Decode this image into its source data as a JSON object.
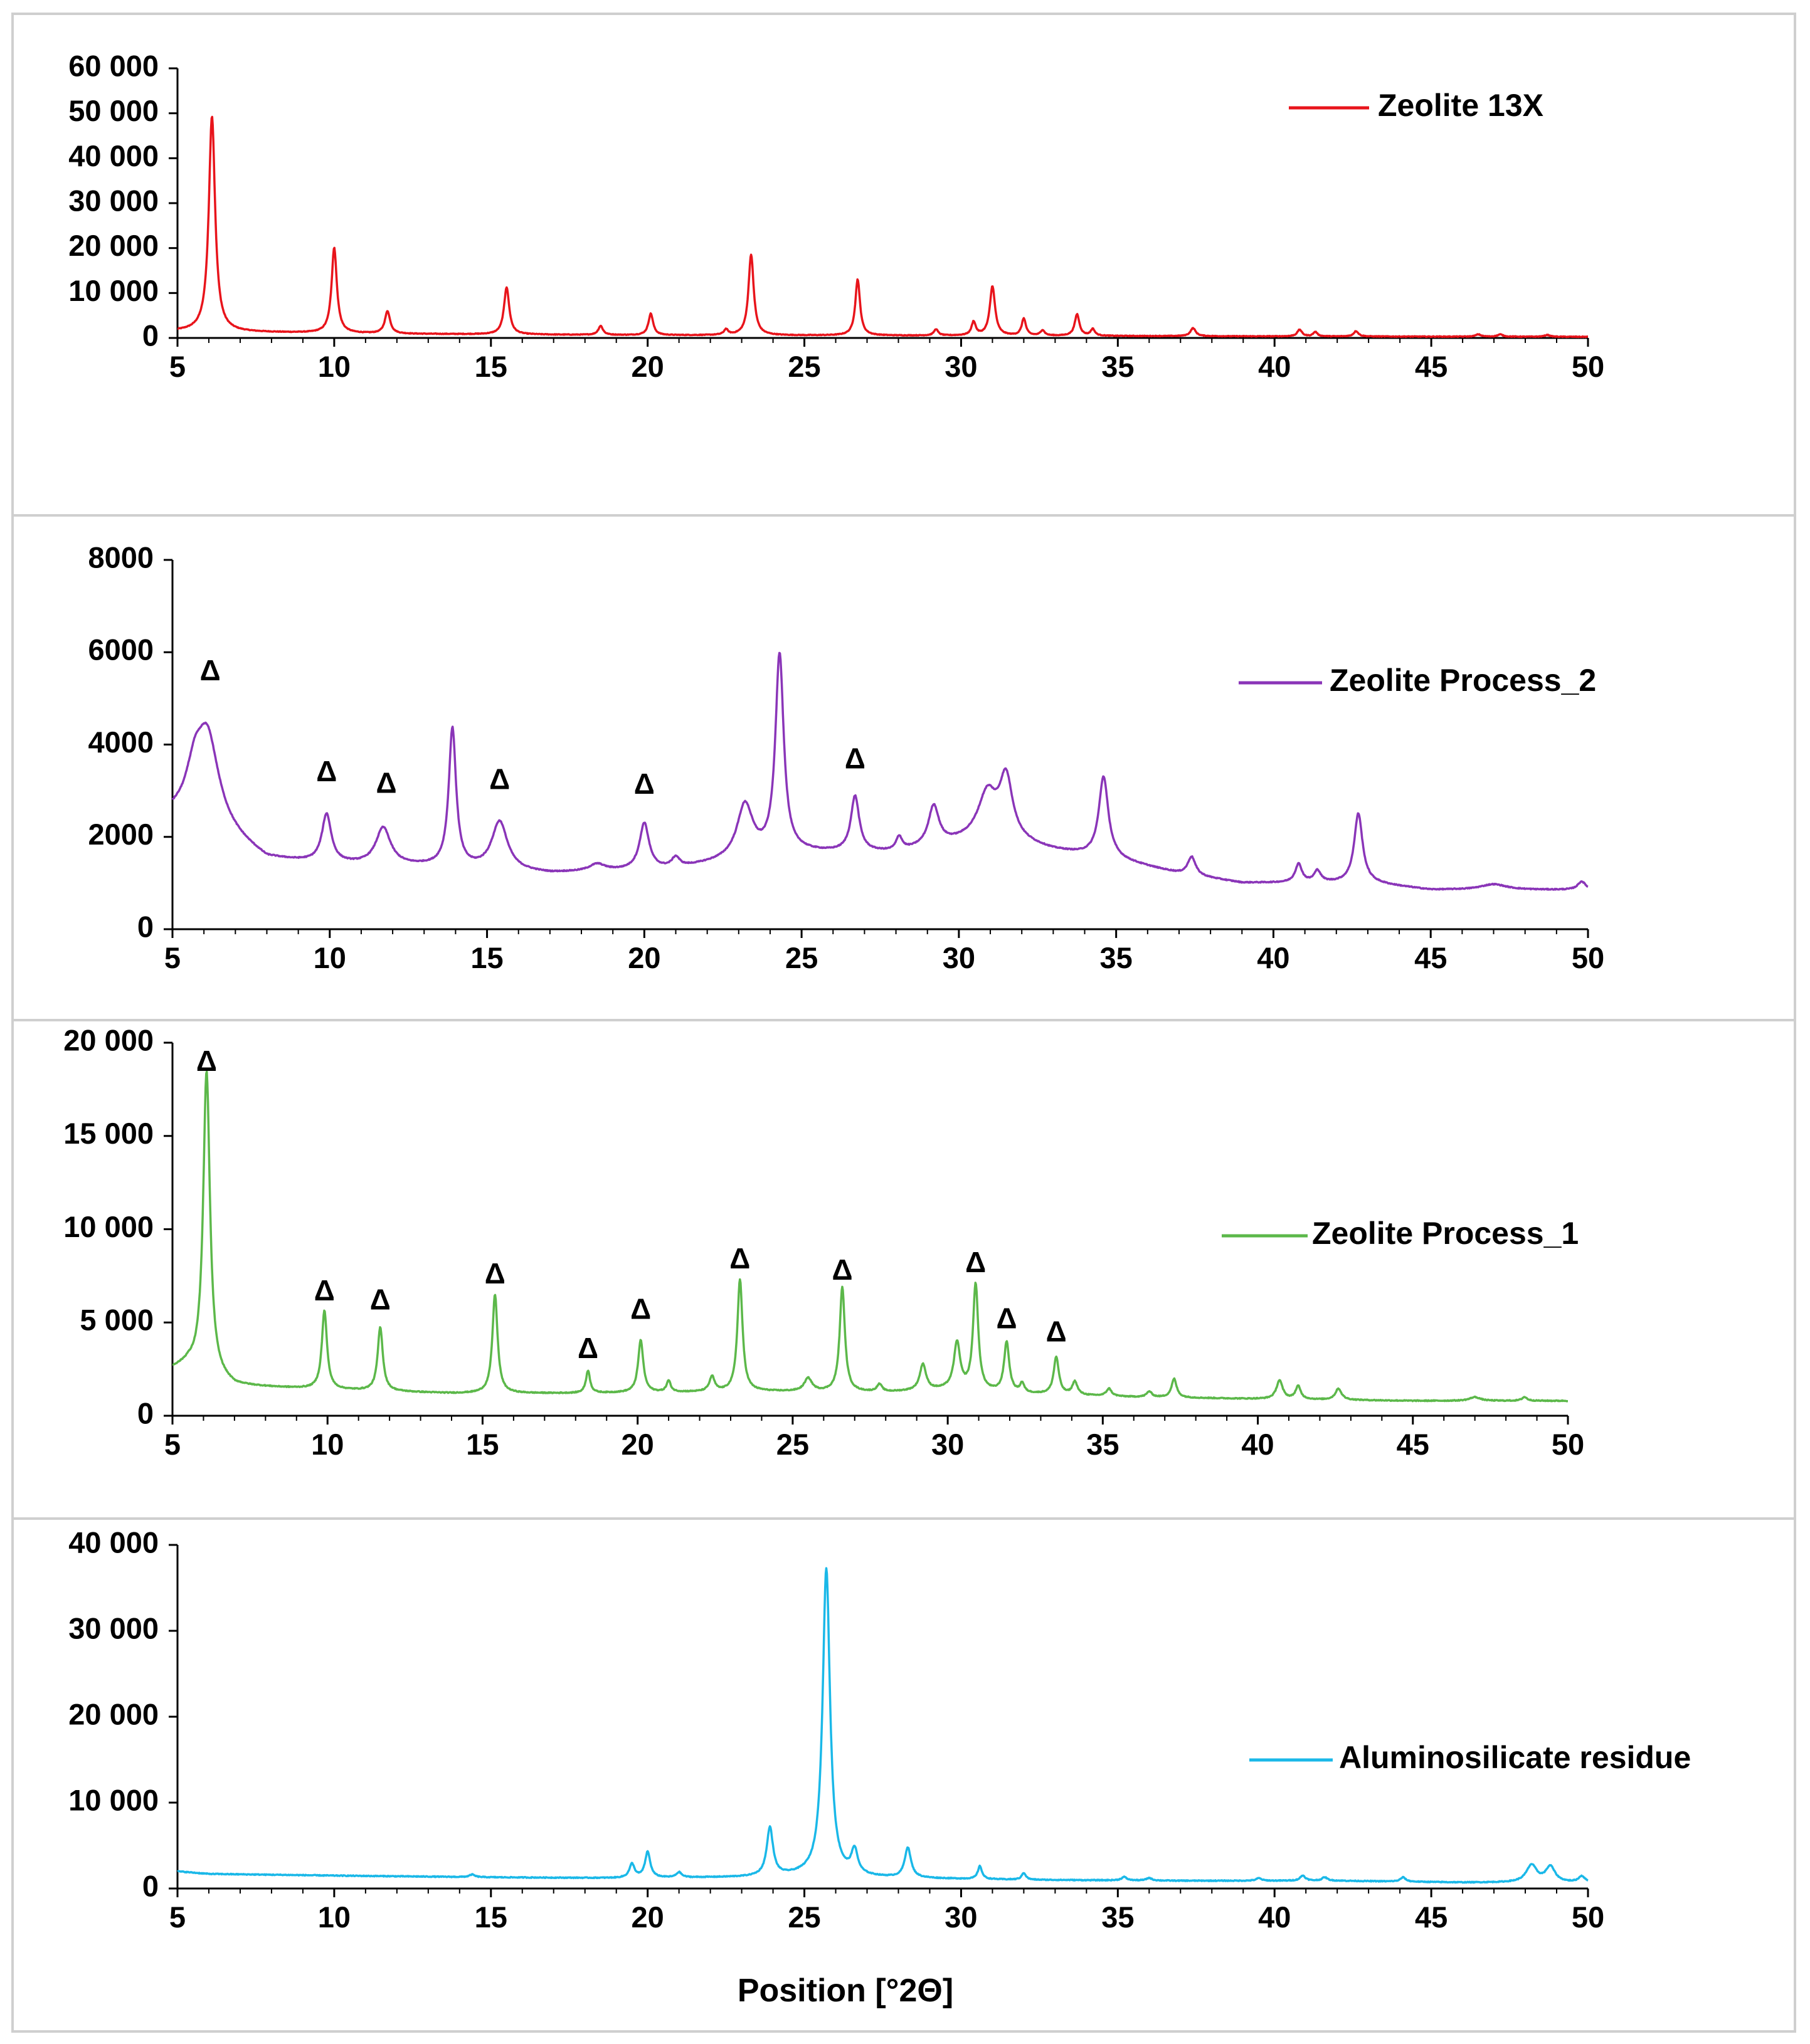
{
  "xlabel": "Position [°2Θ]",
  "marker_symbol": "Δ",
  "colors": {
    "panel_border": "#cfcfcf",
    "axis": "#000000",
    "background": "#ffffff"
  },
  "chart_data": [
    {
      "type": "line",
      "name": "Zeolite 13X",
      "legend": "Zeolite 13X",
      "color": "#e8141b",
      "xlim": [
        5,
        50
      ],
      "ylim": [
        0,
        60000
      ],
      "x_ticks": [
        5,
        10,
        15,
        20,
        25,
        30,
        35,
        40,
        45,
        50
      ],
      "y_ticks": [
        0,
        10000,
        20000,
        30000,
        40000,
        50000,
        60000
      ],
      "y_tick_labels": [
        "0",
        "10 000",
        "20 000",
        "30 000",
        "40 000",
        "50 000",
        "60 000"
      ],
      "baseline": [
        [
          5,
          1500
        ],
        [
          7,
          1300
        ],
        [
          12,
          900
        ],
        [
          20,
          600
        ],
        [
          30,
          500
        ],
        [
          40,
          350
        ],
        [
          50,
          250
        ]
      ],
      "peaks": [
        [
          6.1,
          48000,
          0.12
        ],
        [
          10.0,
          19000,
          0.1
        ],
        [
          11.7,
          5000,
          0.1
        ],
        [
          15.5,
          10500,
          0.1
        ],
        [
          18.5,
          2000,
          0.09
        ],
        [
          20.1,
          4800,
          0.09
        ],
        [
          22.5,
          1200,
          0.08
        ],
        [
          23.3,
          18000,
          0.1
        ],
        [
          26.7,
          12500,
          0.09
        ],
        [
          29.2,
          1400,
          0.08
        ],
        [
          30.4,
          3000,
          0.08
        ],
        [
          31.0,
          11000,
          0.1
        ],
        [
          32.0,
          3800,
          0.08
        ],
        [
          32.6,
          1200,
          0.08
        ],
        [
          33.7,
          4800,
          0.09
        ],
        [
          34.2,
          1500,
          0.08
        ],
        [
          37.4,
          1800,
          0.1
        ],
        [
          40.8,
          1500,
          0.09
        ],
        [
          41.3,
          1000,
          0.08
        ],
        [
          42.6,
          1200,
          0.09
        ],
        [
          46.5,
          500,
          0.1
        ],
        [
          47.2,
          500,
          0.1
        ],
        [
          48.7,
          400,
          0.1
        ]
      ],
      "markers": []
    },
    {
      "type": "line",
      "name": "Zeolite Process_2",
      "legend": "Zeolite Process_2",
      "color": "#8a35b8",
      "xlim": [
        5,
        50
      ],
      "ylim": [
        0,
        8000
      ],
      "x_ticks": [
        5,
        10,
        15,
        20,
        25,
        30,
        35,
        40,
        45,
        50
      ],
      "y_ticks": [
        0,
        2000,
        4000,
        6000,
        8000
      ],
      "y_tick_labels": [
        "0",
        "2000",
        "4000",
        "6000",
        "8000"
      ],
      "baseline": [
        [
          5,
          2450
        ],
        [
          5.5,
          2500
        ],
        [
          8,
          1500
        ],
        [
          10,
          1400
        ],
        [
          13,
          1350
        ],
        [
          17,
          1200
        ],
        [
          21,
          1300
        ],
        [
          23,
          1500
        ],
        [
          25,
          1650
        ],
        [
          28,
          1650
        ],
        [
          31,
          2000
        ],
        [
          33,
          1700
        ],
        [
          35,
          1500
        ],
        [
          37,
          1200
        ],
        [
          39,
          1000
        ],
        [
          43,
          1000
        ],
        [
          45,
          850
        ],
        [
          50,
          850
        ]
      ],
      "peaks": [
        [
          6.1,
          2000,
          0.45
        ],
        [
          5.7,
          600,
          0.25
        ],
        [
          9.9,
          1050,
          0.18
        ],
        [
          11.7,
          800,
          0.28
        ],
        [
          13.9,
          3000,
          0.14
        ],
        [
          15.4,
          1050,
          0.3
        ],
        [
          18.5,
          150,
          0.3
        ],
        [
          20.0,
          1000,
          0.18
        ],
        [
          21.0,
          220,
          0.15
        ],
        [
          23.2,
          1150,
          0.3
        ],
        [
          24.3,
          4300,
          0.16
        ],
        [
          26.7,
          1200,
          0.16
        ],
        [
          28.1,
          300,
          0.12
        ],
        [
          29.2,
          850,
          0.2
        ],
        [
          30.9,
          900,
          0.35
        ],
        [
          31.5,
          1300,
          0.25
        ],
        [
          34.6,
          1750,
          0.18
        ],
        [
          37.4,
          400,
          0.15
        ],
        [
          40.8,
          400,
          0.13
        ],
        [
          41.4,
          250,
          0.13
        ],
        [
          42.7,
          1500,
          0.16
        ],
        [
          47.0,
          120,
          0.5
        ],
        [
          49.8,
          180,
          0.15
        ]
      ],
      "markers": [
        {
          "x": 6.2,
          "y": 5560
        },
        {
          "x": 9.9,
          "y": 3370
        },
        {
          "x": 11.8,
          "y": 3120
        },
        {
          "x": 15.4,
          "y": 3200
        },
        {
          "x": 20.0,
          "y": 3100
        },
        {
          "x": 26.7,
          "y": 3650
        }
      ]
    },
    {
      "type": "line",
      "name": "Zeolite Process_1",
      "legend": "Zeolite Process_1",
      "color": "#5cb84a",
      "xlim": [
        5,
        50
      ],
      "ylim": [
        0,
        20000
      ],
      "x_ticks": [
        5,
        10,
        15,
        20,
        25,
        30,
        35,
        40,
        45,
        50
      ],
      "y_ticks": [
        0,
        5000,
        10000,
        15000,
        20000
      ],
      "y_tick_labels": [
        "0",
        "5 000",
        "10 000",
        "15 000",
        "20 000"
      ],
      "baseline": [
        [
          5,
          2500
        ],
        [
          5.5,
          2700
        ],
        [
          7,
          1600
        ],
        [
          10,
          1400
        ],
        [
          14,
          1200
        ],
        [
          18,
          1200
        ],
        [
          24,
          1300
        ],
        [
          28,
          1250
        ],
        [
          30,
          1400
        ],
        [
          32,
          1200
        ],
        [
          36,
          1000
        ],
        [
          40,
          900
        ],
        [
          45,
          800
        ],
        [
          50,
          800
        ]
      ],
      "peaks": [
        [
          6.1,
          16200,
          0.13
        ],
        [
          9.9,
          4200,
          0.1
        ],
        [
          11.7,
          3400,
          0.1
        ],
        [
          15.4,
          5300,
          0.1
        ],
        [
          18.4,
          1200,
          0.08
        ],
        [
          20.1,
          2800,
          0.1
        ],
        [
          21.0,
          600,
          0.08
        ],
        [
          22.4,
          800,
          0.1
        ],
        [
          23.3,
          6000,
          0.1
        ],
        [
          25.5,
          700,
          0.15
        ],
        [
          26.6,
          5600,
          0.1
        ],
        [
          27.8,
          400,
          0.1
        ],
        [
          29.2,
          1400,
          0.12
        ],
        [
          30.3,
          2500,
          0.12
        ],
        [
          30.9,
          5700,
          0.1
        ],
        [
          31.9,
          2700,
          0.1
        ],
        [
          32.4,
          500,
          0.08
        ],
        [
          33.5,
          2000,
          0.1
        ],
        [
          34.1,
          700,
          0.1
        ],
        [
          35.2,
          400,
          0.1
        ],
        [
          36.5,
          300,
          0.1
        ],
        [
          37.3,
          1000,
          0.1
        ],
        [
          40.7,
          1000,
          0.12
        ],
        [
          41.3,
          700,
          0.1
        ],
        [
          42.6,
          600,
          0.12
        ],
        [
          47.0,
          200,
          0.2
        ],
        [
          48.6,
          200,
          0.1
        ]
      ],
      "markers": [
        {
          "x": 6.1,
          "y": 18900
        },
        {
          "x": 9.9,
          "y": 6600
        },
        {
          "x": 11.7,
          "y": 6100
        },
        {
          "x": 15.4,
          "y": 7500
        },
        {
          "x": 18.4,
          "y": 3500
        },
        {
          "x": 20.1,
          "y": 5600
        },
        {
          "x": 23.3,
          "y": 8300
        },
        {
          "x": 26.6,
          "y": 7700
        },
        {
          "x": 30.9,
          "y": 8100
        },
        {
          "x": 31.9,
          "y": 5100
        },
        {
          "x": 33.5,
          "y": 4400
        }
      ]
    },
    {
      "type": "line",
      "name": "Aluminosilicate residue",
      "legend": "Aluminosilicate residue",
      "color": "#1ab8e8",
      "xlim": [
        5,
        50
      ],
      "ylim": [
        0,
        40000
      ],
      "x_ticks": [
        5,
        10,
        15,
        20,
        25,
        30,
        35,
        40,
        45,
        50
      ],
      "y_ticks": [
        0,
        10000,
        20000,
        30000,
        40000
      ],
      "y_tick_labels": [
        "0",
        "10 000",
        "20 000",
        "30 000",
        "40 000"
      ],
      "baseline": [
        [
          5,
          2000
        ],
        [
          6,
          1700
        ],
        [
          10,
          1500
        ],
        [
          15,
          1300
        ],
        [
          19,
          1200
        ],
        [
          23,
          1300
        ],
        [
          25,
          1500
        ],
        [
          28,
          1200
        ],
        [
          32,
          1000
        ],
        [
          37,
          900
        ],
        [
          42,
          900
        ],
        [
          46,
          700
        ],
        [
          50,
          700
        ]
      ],
      "peaks": [
        [
          14.4,
          300,
          0.1
        ],
        [
          19.5,
          1600,
          0.1
        ],
        [
          20.0,
          3000,
          0.1
        ],
        [
          21.0,
          600,
          0.1
        ],
        [
          23.9,
          5600,
          0.12
        ],
        [
          25.7,
          35800,
          0.14
        ],
        [
          26.6,
          2800,
          0.12
        ],
        [
          28.3,
          3500,
          0.12
        ],
        [
          30.6,
          1500,
          0.08
        ],
        [
          32.0,
          800,
          0.08
        ],
        [
          35.2,
          400,
          0.1
        ],
        [
          36.0,
          300,
          0.1
        ],
        [
          39.5,
          300,
          0.1
        ],
        [
          40.9,
          600,
          0.1
        ],
        [
          41.6,
          400,
          0.1
        ],
        [
          44.1,
          500,
          0.1
        ],
        [
          48.2,
          2000,
          0.2
        ],
        [
          48.8,
          1800,
          0.18
        ],
        [
          49.8,
          700,
          0.12
        ]
      ],
      "markers": []
    }
  ]
}
